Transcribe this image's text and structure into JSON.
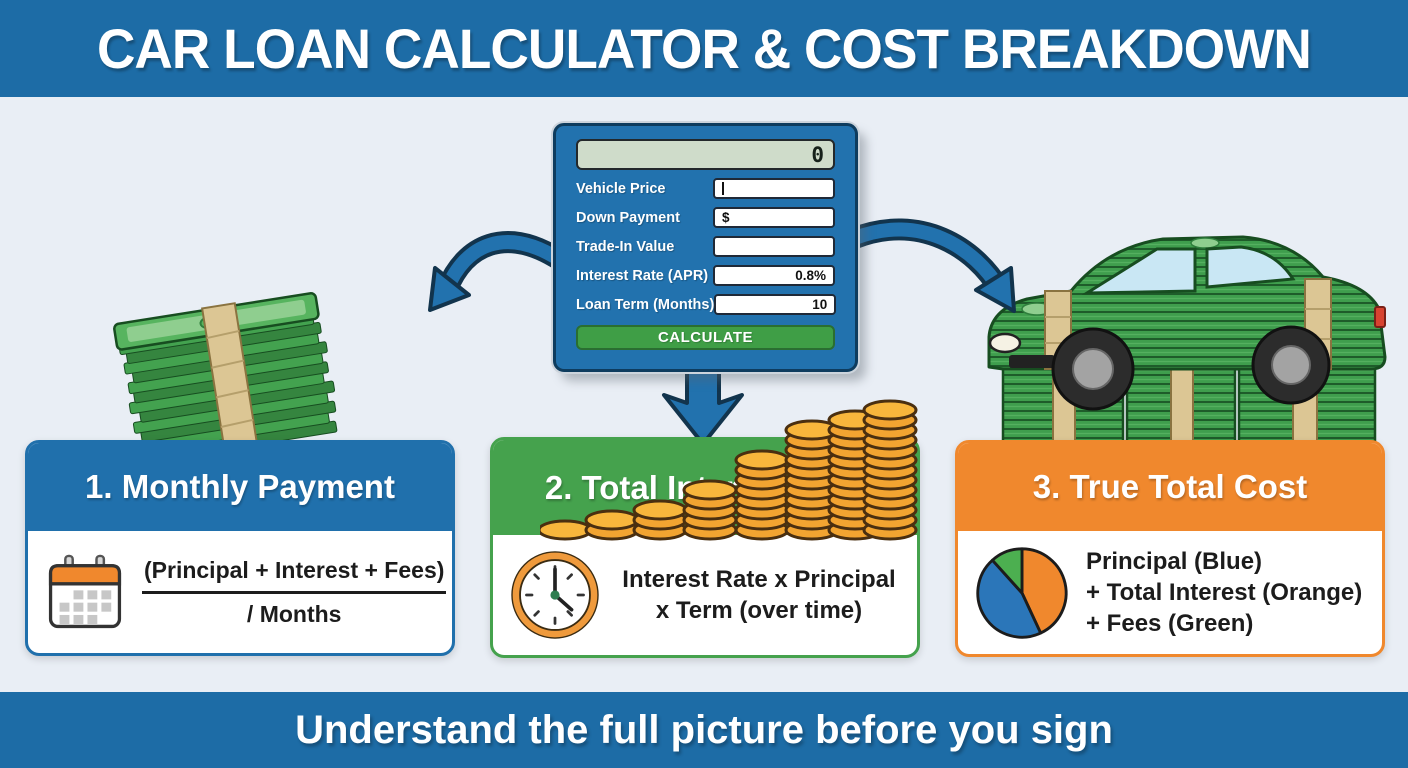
{
  "title": "CAR LOAN CALCULATOR & COST BREAKDOWN",
  "footer": {
    "text": "Understand the full picture before you sign"
  },
  "calculator": {
    "display_value": "0",
    "fields": [
      {
        "label": "Vehicle Price",
        "value": "",
        "align": "left",
        "has_cursor": true
      },
      {
        "label": "Down Payment",
        "value": "$",
        "align": "left"
      },
      {
        "label": "Trade-In Value",
        "value": "",
        "align": "left"
      },
      {
        "label": "Interest Rate (APR)",
        "value": "0.8%",
        "align": "right"
      },
      {
        "label": "Loan Term (Months)",
        "value": "10",
        "align": "right"
      }
    ],
    "calculate_label": "CALCULATE"
  },
  "cards": [
    {
      "title": "1. Monthly Payment",
      "icon": "calendar-icon",
      "accent_color": "#2070ac",
      "formula_top": "(Principal + Interest + Fees)",
      "formula_bottom": "/ Months"
    },
    {
      "title": "2. Total Interest Paid",
      "icon": "clock-icon",
      "accent_color": "#45a24d",
      "formula_line1": "Interest Rate x Principal",
      "formula_line2": "x Term (over time)"
    },
    {
      "title": "3. True Total Cost",
      "icon": "pie-chart-icon",
      "accent_color": "#f0882d",
      "lines": [
        "Principal (Blue)",
        "+ Total Interest (Orange)",
        "+ Fees (Green)"
      ],
      "pie_slices": [
        {
          "label": "Principal",
          "color": "#2b76b9",
          "percent": 45
        },
        {
          "label": "Total Interest",
          "color": "#f0882d",
          "percent": 43
        },
        {
          "label": "Fees",
          "color": "#4caf50",
          "percent": 12
        }
      ]
    }
  ],
  "decor": {
    "coin_stack_heights": [
      1,
      2,
      3,
      5,
      8,
      11,
      12,
      13
    ]
  },
  "palette": {
    "banner": "#1d6ca6",
    "panelBlue": "#2272ae",
    "cardBlue": "#2070ac",
    "green": "#45a24d",
    "orange": "#f0882d",
    "btnGreen": "#3f9e46",
    "lcd": "#cfdcca",
    "bg": "#e9eef5",
    "billGreen": "#3f9e4d",
    "tan": "#dcc694",
    "coin": "#f2a431",
    "window": "#c9e7f4"
  }
}
